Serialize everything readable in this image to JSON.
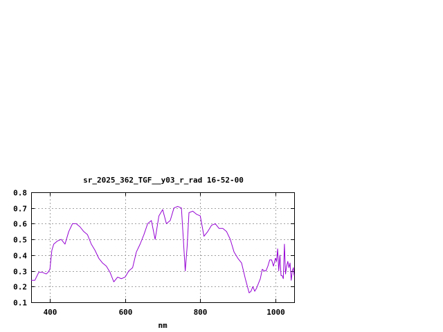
{
  "chart_data": {
    "type": "line",
    "title": "sr_2025_362_TGF__y03_r_rad 16-52-00",
    "xlabel": "nm",
    "ylabel": "",
    "xlim": [
      350,
      1050
    ],
    "ylim": [
      0.1,
      0.8
    ],
    "x_ticks": [
      400,
      600,
      800,
      1000
    ],
    "y_ticks": [
      0.1,
      0.2,
      0.3,
      0.4,
      0.5,
      0.6,
      0.7,
      0.8
    ],
    "x_tick_labels": [
      "400",
      "600",
      "800",
      "1000"
    ],
    "y_tick_labels": [
      "0.1",
      "0.2",
      "0.3",
      "0.4",
      "0.5",
      "0.6",
      "0.7",
      "0.8"
    ],
    "grid": true,
    "legend": "none",
    "colors": {
      "series": "#9400d3",
      "grid": "#a0a0a0",
      "frame": "#000000"
    },
    "series": [
      {
        "x": [
          350,
          360,
          370,
          380,
          390,
          395,
          400,
          405,
          410,
          420,
          430,
          440,
          450,
          460,
          470,
          480,
          490,
          500,
          510,
          520,
          530,
          540,
          550,
          560,
          570,
          580,
          590,
          600,
          610,
          620,
          630,
          640,
          650,
          660,
          670,
          680,
          690,
          700,
          710,
          720,
          730,
          740,
          750,
          755,
          760,
          765,
          770,
          780,
          790,
          800,
          810,
          820,
          830,
          840,
          850,
          860,
          870,
          880,
          890,
          900,
          910,
          920,
          930,
          935,
          940,
          945,
          950,
          955,
          960,
          965,
          970,
          975,
          980,
          985,
          990,
          995,
          1000,
          1003,
          1006,
          1009,
          1012,
          1015,
          1018,
          1021,
          1024,
          1027,
          1030,
          1033,
          1036,
          1039,
          1042,
          1045,
          1048,
          1050
        ],
        "y": [
          0.24,
          0.24,
          0.29,
          0.29,
          0.28,
          0.29,
          0.31,
          0.43,
          0.47,
          0.49,
          0.5,
          0.47,
          0.55,
          0.6,
          0.6,
          0.58,
          0.55,
          0.53,
          0.47,
          0.43,
          0.38,
          0.35,
          0.33,
          0.29,
          0.23,
          0.26,
          0.25,
          0.26,
          0.3,
          0.32,
          0.42,
          0.47,
          0.53,
          0.6,
          0.62,
          0.5,
          0.65,
          0.69,
          0.6,
          0.62,
          0.7,
          0.71,
          0.7,
          0.5,
          0.3,
          0.45,
          0.67,
          0.68,
          0.66,
          0.65,
          0.52,
          0.55,
          0.59,
          0.6,
          0.57,
          0.57,
          0.55,
          0.5,
          0.42,
          0.38,
          0.35,
          0.25,
          0.16,
          0.17,
          0.2,
          0.17,
          0.19,
          0.22,
          0.25,
          0.31,
          0.3,
          0.3,
          0.33,
          0.37,
          0.37,
          0.33,
          0.38,
          0.36,
          0.44,
          0.3,
          0.4,
          0.27,
          0.27,
          0.25,
          0.47,
          0.28,
          0.33,
          0.36,
          0.32,
          0.35,
          0.24,
          0.3,
          0.32,
          0.27
        ]
      }
    ]
  }
}
